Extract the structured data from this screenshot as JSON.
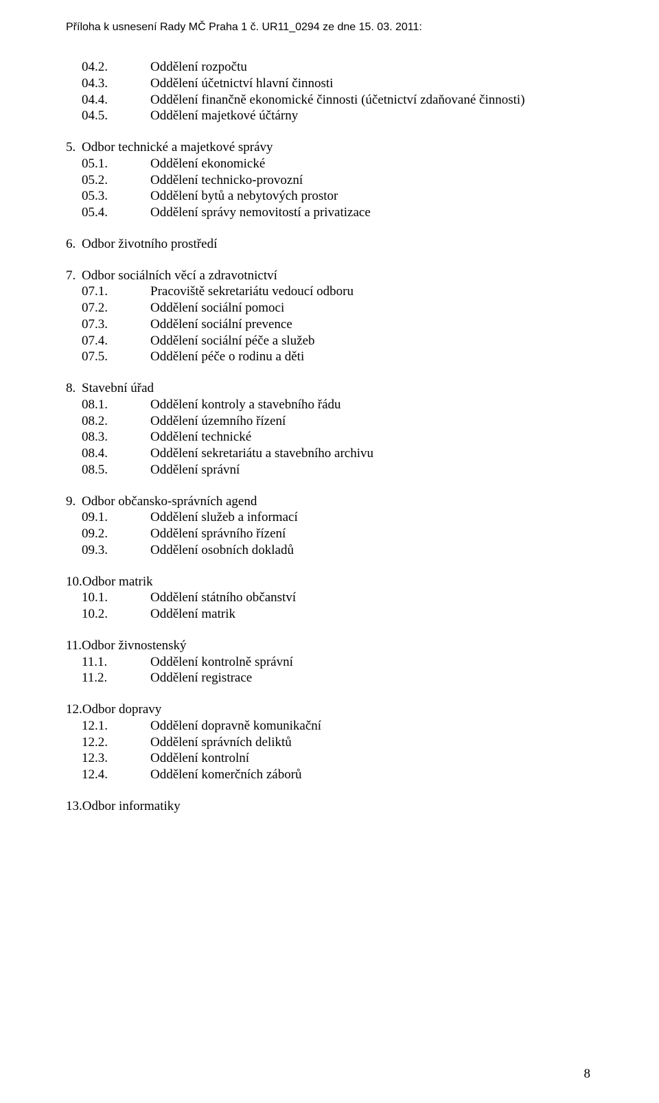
{
  "header": "Příloha k usnesení Rady MČ Praha 1 č. UR11_0294 ze dne 15. 03. 2011:",
  "page_number": "8",
  "sections": [
    {
      "continuation": true,
      "subs": [
        {
          "num": "04.2.",
          "text": "Oddělení rozpočtu"
        },
        {
          "num": "04.3.",
          "text": "Oddělení účetnictví hlavní činnosti"
        },
        {
          "num": "04.4.",
          "text": "Oddělení finančně ekonomické činnosti (účetnictví zdaňované činnosti)"
        },
        {
          "num": "04.5.",
          "text": "Oddělení majetkové účtárny"
        }
      ]
    },
    {
      "num": "5.",
      "title": "Odbor technické a majetkové správy",
      "subs": [
        {
          "num": "05.1.",
          "text": "Oddělení ekonomické"
        },
        {
          "num": "05.2.",
          "text": "Oddělení technicko-provozní"
        },
        {
          "num": "05.3.",
          "text": "Oddělení bytů a nebytových prostor"
        },
        {
          "num": "05.4.",
          "text": "Oddělení správy nemovitostí a privatizace"
        }
      ]
    },
    {
      "num": "6.",
      "title": "Odbor životního prostředí",
      "subs": []
    },
    {
      "num": "7.",
      "title": "Odbor sociálních věcí a zdravotnictví",
      "subs": [
        {
          "num": "07.1.",
          "text": "Pracoviště sekretariátu vedoucí odboru"
        },
        {
          "num": "07.2.",
          "text": "Oddělení sociální pomoci"
        },
        {
          "num": "07.3.",
          "text": "Oddělení sociální prevence"
        },
        {
          "num": "07.4.",
          "text": "Oddělení sociální péče a služeb"
        },
        {
          "num": "07.5.",
          "text": "Oddělení péče o rodinu a děti"
        }
      ]
    },
    {
      "num": "8.",
      "title": "Stavební úřad",
      "subs": [
        {
          "num": "08.1.",
          "text": "Oddělení kontroly a stavebního řádu"
        },
        {
          "num": "08.2.",
          "text": "Oddělení územního řízení"
        },
        {
          "num": "08.3.",
          "text": "Oddělení technické"
        },
        {
          "num": "08.4.",
          "text": "Oddělení sekretariátu a stavebního archivu"
        },
        {
          "num": "08.5.",
          "text": "Oddělení správní"
        }
      ]
    },
    {
      "num": "9.",
      "title": "Odbor občansko-správních agend",
      "subs": [
        {
          "num": "09.1.",
          "text": "Oddělení služeb a informací"
        },
        {
          "num": "09.2.",
          "text": "Oddělení správního řízení"
        },
        {
          "num": "09.3.",
          "text": "Oddělení osobních dokladů"
        }
      ]
    },
    {
      "num": "10.",
      "title": "Odbor matrik",
      "flush": true,
      "subs": [
        {
          "num": "10.1.",
          "text": "Oddělení státního občanství"
        },
        {
          "num": "10.2.",
          "text": "Oddělení matrik"
        }
      ]
    },
    {
      "num": "11.",
      "title": "Odbor živnostenský",
      "flush": true,
      "subs": [
        {
          "num": "11.1.",
          "text": "Oddělení kontrolně správní"
        },
        {
          "num": "11.2.",
          "text": "Oddělení registrace"
        }
      ]
    },
    {
      "num": "12.",
      "title": "Odbor dopravy",
      "flush": true,
      "subs": [
        {
          "num": "12.1.",
          "text": "Oddělení dopravně komunikační"
        },
        {
          "num": "12.2.",
          "text": "Oddělení správních deliktů"
        },
        {
          "num": "12.3.",
          "text": "Oddělení kontrolní"
        },
        {
          "num": "12.4.",
          "text": "Oddělení komerčních záborů"
        }
      ]
    },
    {
      "num": "13.",
      "title": "Odbor informatiky",
      "flush": true,
      "subs": []
    }
  ]
}
